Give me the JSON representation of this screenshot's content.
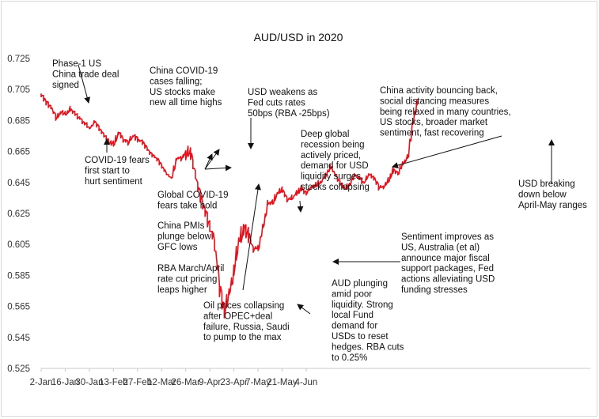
{
  "chart_data": {
    "type": "line",
    "title": "AUD/USD in 2020",
    "xlabel": "",
    "ylabel": "",
    "ylim": [
      0.525,
      0.725
    ],
    "ytick_labels": [
      "0.725",
      "0.705",
      "0.685",
      "0.665",
      "0.645",
      "0.625",
      "0.605",
      "0.585",
      "0.565",
      "0.545",
      "0.525"
    ],
    "xtick_labels": [
      "2-Jan",
      "16-Jan",
      "30-Jan",
      "13-Feb",
      "27-Feb",
      "12-Mar",
      "26-Mar",
      "9-Apr",
      "23-Apr",
      "7-May",
      "21-May",
      "4-Jun"
    ],
    "grid": false,
    "series": [
      {
        "color": "#e8101a",
        "x": [
          0,
          2,
          4,
          6,
          8,
          10,
          12,
          14,
          16,
          18,
          20,
          22,
          24,
          26,
          28,
          30,
          32,
          34,
          36,
          38,
          40,
          42,
          44,
          46,
          48,
          50,
          52,
          54,
          56,
          58,
          60,
          62,
          64,
          66,
          68,
          69,
          70,
          71,
          72,
          73,
          74,
          75,
          76,
          77,
          78,
          79,
          80,
          81,
          82,
          83,
          84,
          86,
          88,
          90,
          92,
          94,
          96,
          98,
          100,
          102,
          104,
          106,
          108,
          110,
          112,
          114,
          116,
          118,
          120,
          122,
          124,
          126,
          128,
          130,
          132,
          134,
          136,
          138,
          140,
          142,
          144,
          146,
          148,
          150,
          152,
          154,
          156
        ],
        "y": [
          0.701,
          0.697,
          0.693,
          0.687,
          0.69,
          0.689,
          0.692,
          0.689,
          0.686,
          0.683,
          0.68,
          0.684,
          0.68,
          0.675,
          0.671,
          0.67,
          0.677,
          0.673,
          0.671,
          0.675,
          0.673,
          0.671,
          0.666,
          0.663,
          0.66,
          0.655,
          0.65,
          0.648,
          0.66,
          0.661,
          0.664,
          0.663,
          0.648,
          0.636,
          0.625,
          0.62,
          0.615,
          0.611,
          0.601,
          0.59,
          0.577,
          0.568,
          0.563,
          0.568,
          0.573,
          0.579,
          0.59,
          0.598,
          0.608,
          0.611,
          0.616,
          0.611,
          0.602,
          0.603,
          0.617,
          0.632,
          0.632,
          0.638,
          0.64,
          0.634,
          0.635,
          0.638,
          0.641,
          0.638,
          0.642,
          0.643,
          0.645,
          0.65,
          0.655,
          0.65,
          0.645,
          0.641,
          0.644,
          0.65,
          0.647,
          0.645,
          0.65,
          0.648,
          0.642,
          0.642,
          0.646,
          0.653,
          0.651,
          0.658,
          0.661,
          0.683,
          0.697
        ]
      }
    ],
    "annotations": [
      {
        "lines": [
          "Phase-1 US",
          "China trade deal",
          "signed"
        ]
      },
      {
        "lines": [
          "China COVID-19",
          "cases falling;",
          "US stocks make",
          "new all time highs"
        ]
      },
      {
        "lines": [
          "USD weakens as",
          "Fed cuts rates",
          "50bps (RBA -25bps)"
        ]
      },
      {
        "lines": [
          "China activity bouncing back,",
          "social distancing measures",
          "being relaxed in many countries,",
          "US stocks, broader market",
          "sentiment, fast recovering"
        ]
      },
      {
        "lines": [
          "Deep global",
          "recession being",
          "actively priced,",
          "demand for USD",
          "liquidity surges,",
          "stocks collapsing"
        ]
      },
      {
        "lines": [
          "COVID-19 fears",
          "first start to",
          "hurt sentiment"
        ]
      },
      {
        "lines": [
          "Global  COVID-19",
          "fears take hold"
        ]
      },
      {
        "lines": [
          "China PMIs",
          "plunge below",
          "GFC lows"
        ]
      },
      {
        "lines": [
          "RBA March/April",
          "rate cut pricing",
          "leaps higher"
        ]
      },
      {
        "lines": [
          "Oil prices collapsing",
          "after OPEC+deal",
          "failure, Russia, Saudi",
          "to pump to the max"
        ]
      },
      {
        "lines": [
          "AUD plunging",
          "amid poor",
          "liquidity. Strong",
          "local Fund",
          "demand for",
          "USDs to reset",
          "hedges. RBA cuts",
          "to 0.25%"
        ]
      },
      {
        "lines": [
          "Sentiment improves as",
          "US, Australia (et al)",
          "announce major fiscal",
          "support packages, Fed",
          "actions alleviating USD",
          "funding stresses"
        ]
      },
      {
        "lines": [
          "USD breaking",
          "down below",
          "April-May ranges"
        ]
      }
    ]
  }
}
